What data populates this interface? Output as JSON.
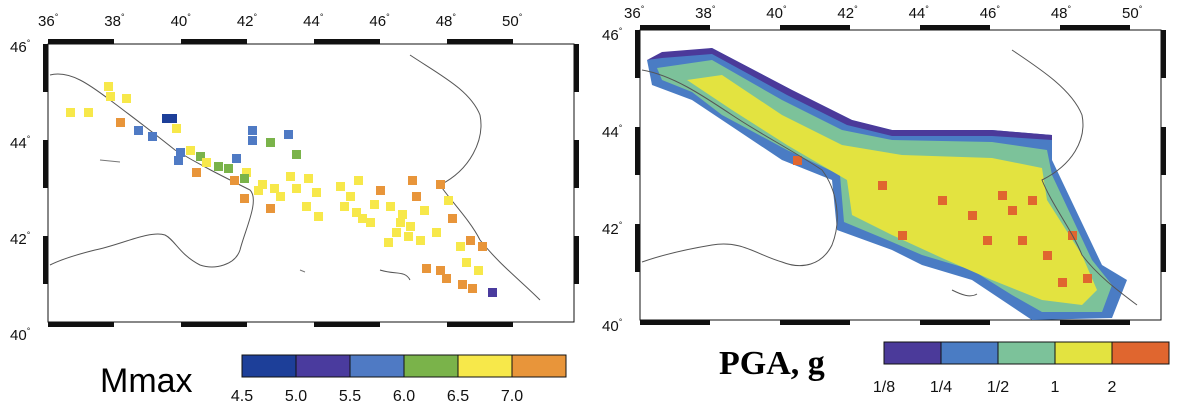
{
  "maps": [
    {
      "legend_title": "Mmax",
      "x_ticks": [
        "36",
        "38",
        "40",
        "42",
        "44",
        "46",
        "48",
        "50"
      ],
      "y_ticks": [
        "46",
        "44",
        "42",
        "40"
      ],
      "degree_symbol": "°",
      "legend": {
        "labels": [
          "4.5",
          "5.0",
          "5.5",
          "6.0",
          "6.5",
          "7.0"
        ],
        "colors": [
          "#1d3f99",
          "#4a3b9e",
          "#4f7ac4",
          "#7ab34a",
          "#f7e84a",
          "#e8953a"
        ]
      }
    },
    {
      "legend_title": "PGA, g",
      "x_ticks": [
        "36",
        "38",
        "40",
        "42",
        "44",
        "46",
        "48",
        "50"
      ],
      "y_ticks": [
        "46",
        "44",
        "42",
        "40"
      ],
      "degree_symbol": "°",
      "legend": {
        "labels": [
          "1/8",
          "1/4",
          "1/2",
          "1",
          "2"
        ],
        "colors": [
          "#4b3a9a",
          "#4a7cc4",
          "#7cc29a",
          "#e3e340",
          "#e0662f"
        ]
      }
    }
  ]
}
